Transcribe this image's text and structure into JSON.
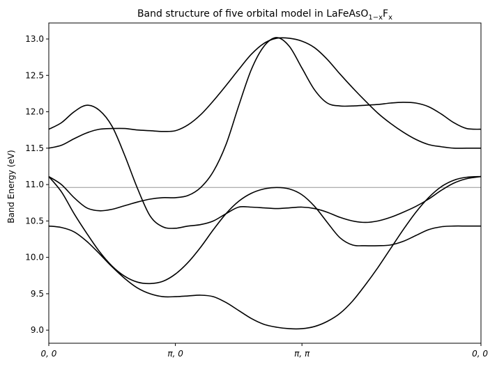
{
  "chart_data": {
    "type": "line",
    "title": "Band structure of five orbital model in LaFeAsO",
    "title_sub": "1−x",
    "title_mid": "F",
    "title_sub2": "x",
    "xlabel": "",
    "ylabel": "Band Energy (eV)",
    "xlim": [
      0,
      3.4142
    ],
    "ylim": [
      8.82,
      13.22
    ],
    "x_ticks": [
      {
        "value": 0,
        "label": "0, 0"
      },
      {
        "value": 1,
        "label": "π, 0"
      },
      {
        "value": 2,
        "label": "π, π"
      },
      {
        "value": 3.4142,
        "label": "0, 0"
      }
    ],
    "y_ticks": [
      {
        "value": 9.0,
        "label": "9.0"
      },
      {
        "value": 9.5,
        "label": "9.5"
      },
      {
        "value": 10.0,
        "label": "10.0"
      },
      {
        "value": 10.5,
        "label": "10.5"
      },
      {
        "value": 11.0,
        "label": "11.0"
      },
      {
        "value": 11.5,
        "label": "11.5"
      },
      {
        "value": 12.0,
        "label": "12.0"
      },
      {
        "value": 12.5,
        "label": "12.5"
      },
      {
        "value": 13.0,
        "label": "13.0"
      }
    ],
    "fermi_level": 10.96,
    "grid": false,
    "line_color": "#000000",
    "fermi_color": "#b0b0b0",
    "series": [
      {
        "x": [
          0,
          0.1,
          0.2,
          0.3,
          0.4,
          0.5,
          0.6,
          0.7,
          0.8,
          0.9,
          1.0,
          1.1,
          1.2,
          1.3,
          1.4,
          1.5,
          1.6,
          1.7,
          1.8,
          1.9,
          2.0,
          2.1,
          2.2,
          2.3,
          2.4,
          2.5,
          2.6,
          2.7,
          2.8,
          2.9,
          3.0,
          3.1,
          3.2,
          3.3,
          3.4142
        ],
        "values": [
          10.43,
          10.41,
          10.35,
          10.22,
          10.05,
          9.87,
          9.71,
          9.58,
          9.5,
          9.46,
          9.46,
          9.47,
          9.48,
          9.46,
          9.38,
          9.27,
          9.16,
          9.08,
          9.04,
          9.02,
          9.02,
          9.05,
          9.12,
          9.23,
          9.4,
          9.62,
          9.86,
          10.12,
          10.38,
          10.62,
          10.82,
          10.97,
          11.06,
          11.1,
          11.11
        ]
      },
      {
        "x": [
          0,
          0.1,
          0.2,
          0.3,
          0.4,
          0.5,
          0.6,
          0.7,
          0.8,
          0.9,
          1.0,
          1.1,
          1.2,
          1.3,
          1.4,
          1.5,
          1.6,
          1.7,
          1.8,
          1.9,
          2.0,
          2.1,
          2.2,
          2.3,
          2.4,
          2.5,
          2.6,
          2.7,
          2.8,
          2.9,
          3.0,
          3.1,
          3.2,
          3.3,
          3.4142
        ],
        "values": [
          11.11,
          10.9,
          10.6,
          10.33,
          10.08,
          9.88,
          9.74,
          9.66,
          9.64,
          9.67,
          9.77,
          9.93,
          10.14,
          10.38,
          10.6,
          10.77,
          10.88,
          10.94,
          10.96,
          10.94,
          10.86,
          10.7,
          10.48,
          10.27,
          10.17,
          10.16,
          10.16,
          10.17,
          10.22,
          10.3,
          10.38,
          10.42,
          10.43,
          10.43,
          10.43
        ]
      },
      {
        "x": [
          0,
          0.1,
          0.2,
          0.3,
          0.4,
          0.5,
          0.6,
          0.7,
          0.8,
          0.9,
          1.0,
          1.1,
          1.2,
          1.3,
          1.4,
          1.5,
          1.6,
          1.7,
          1.8,
          1.9,
          2.0,
          2.1,
          2.2,
          2.3,
          2.4,
          2.5,
          2.6,
          2.7,
          2.8,
          2.9,
          3.0,
          3.1,
          3.2,
          3.3,
          3.4142
        ],
        "values": [
          11.11,
          11.0,
          10.82,
          10.68,
          10.64,
          10.66,
          10.71,
          10.76,
          10.8,
          10.82,
          10.82,
          10.85,
          10.96,
          11.18,
          11.55,
          12.08,
          12.58,
          12.9,
          13.02,
          12.9,
          12.6,
          12.3,
          12.12,
          12.08,
          12.08,
          12.09,
          12.1,
          12.12,
          12.13,
          12.12,
          12.07,
          11.97,
          11.85,
          11.77,
          11.76
        ]
      },
      {
        "x": [
          0,
          0.1,
          0.2,
          0.3,
          0.4,
          0.5,
          0.6,
          0.7,
          0.8,
          0.9,
          1.0,
          1.1,
          1.2,
          1.3,
          1.4,
          1.5,
          1.6,
          1.7,
          1.8,
          1.9,
          2.0,
          2.1,
          2.2,
          2.3,
          2.4,
          2.5,
          2.6,
          2.7,
          2.8,
          2.9,
          3.0,
          3.1,
          3.2,
          3.3,
          3.4142
        ],
        "values": [
          11.76,
          11.85,
          12.0,
          12.09,
          12.02,
          11.8,
          11.4,
          10.95,
          10.57,
          10.42,
          10.4,
          10.43,
          10.45,
          10.5,
          10.6,
          10.69,
          10.69,
          10.68,
          10.67,
          10.68,
          10.69,
          10.67,
          10.62,
          10.55,
          10.5,
          10.48,
          10.5,
          10.55,
          10.62,
          10.7,
          10.8,
          10.92,
          11.02,
          11.08,
          11.11
        ]
      },
      {
        "x": [
          0,
          0.1,
          0.2,
          0.3,
          0.4,
          0.5,
          0.6,
          0.7,
          0.8,
          0.9,
          1.0,
          1.1,
          1.2,
          1.3,
          1.4,
          1.5,
          1.6,
          1.7,
          1.8,
          1.9,
          2.0,
          2.1,
          2.2,
          2.3,
          2.4,
          2.5,
          2.6,
          2.7,
          2.8,
          2.9,
          3.0,
          3.1,
          3.2,
          3.3,
          3.4142
        ],
        "values": [
          11.5,
          11.54,
          11.63,
          11.71,
          11.76,
          11.77,
          11.77,
          11.75,
          11.74,
          11.73,
          11.74,
          11.82,
          11.96,
          12.15,
          12.36,
          12.58,
          12.79,
          12.94,
          13.01,
          13.01,
          12.97,
          12.88,
          12.72,
          12.52,
          12.33,
          12.15,
          11.98,
          11.84,
          11.72,
          11.62,
          11.55,
          11.52,
          11.5,
          11.5,
          11.5
        ]
      }
    ]
  }
}
